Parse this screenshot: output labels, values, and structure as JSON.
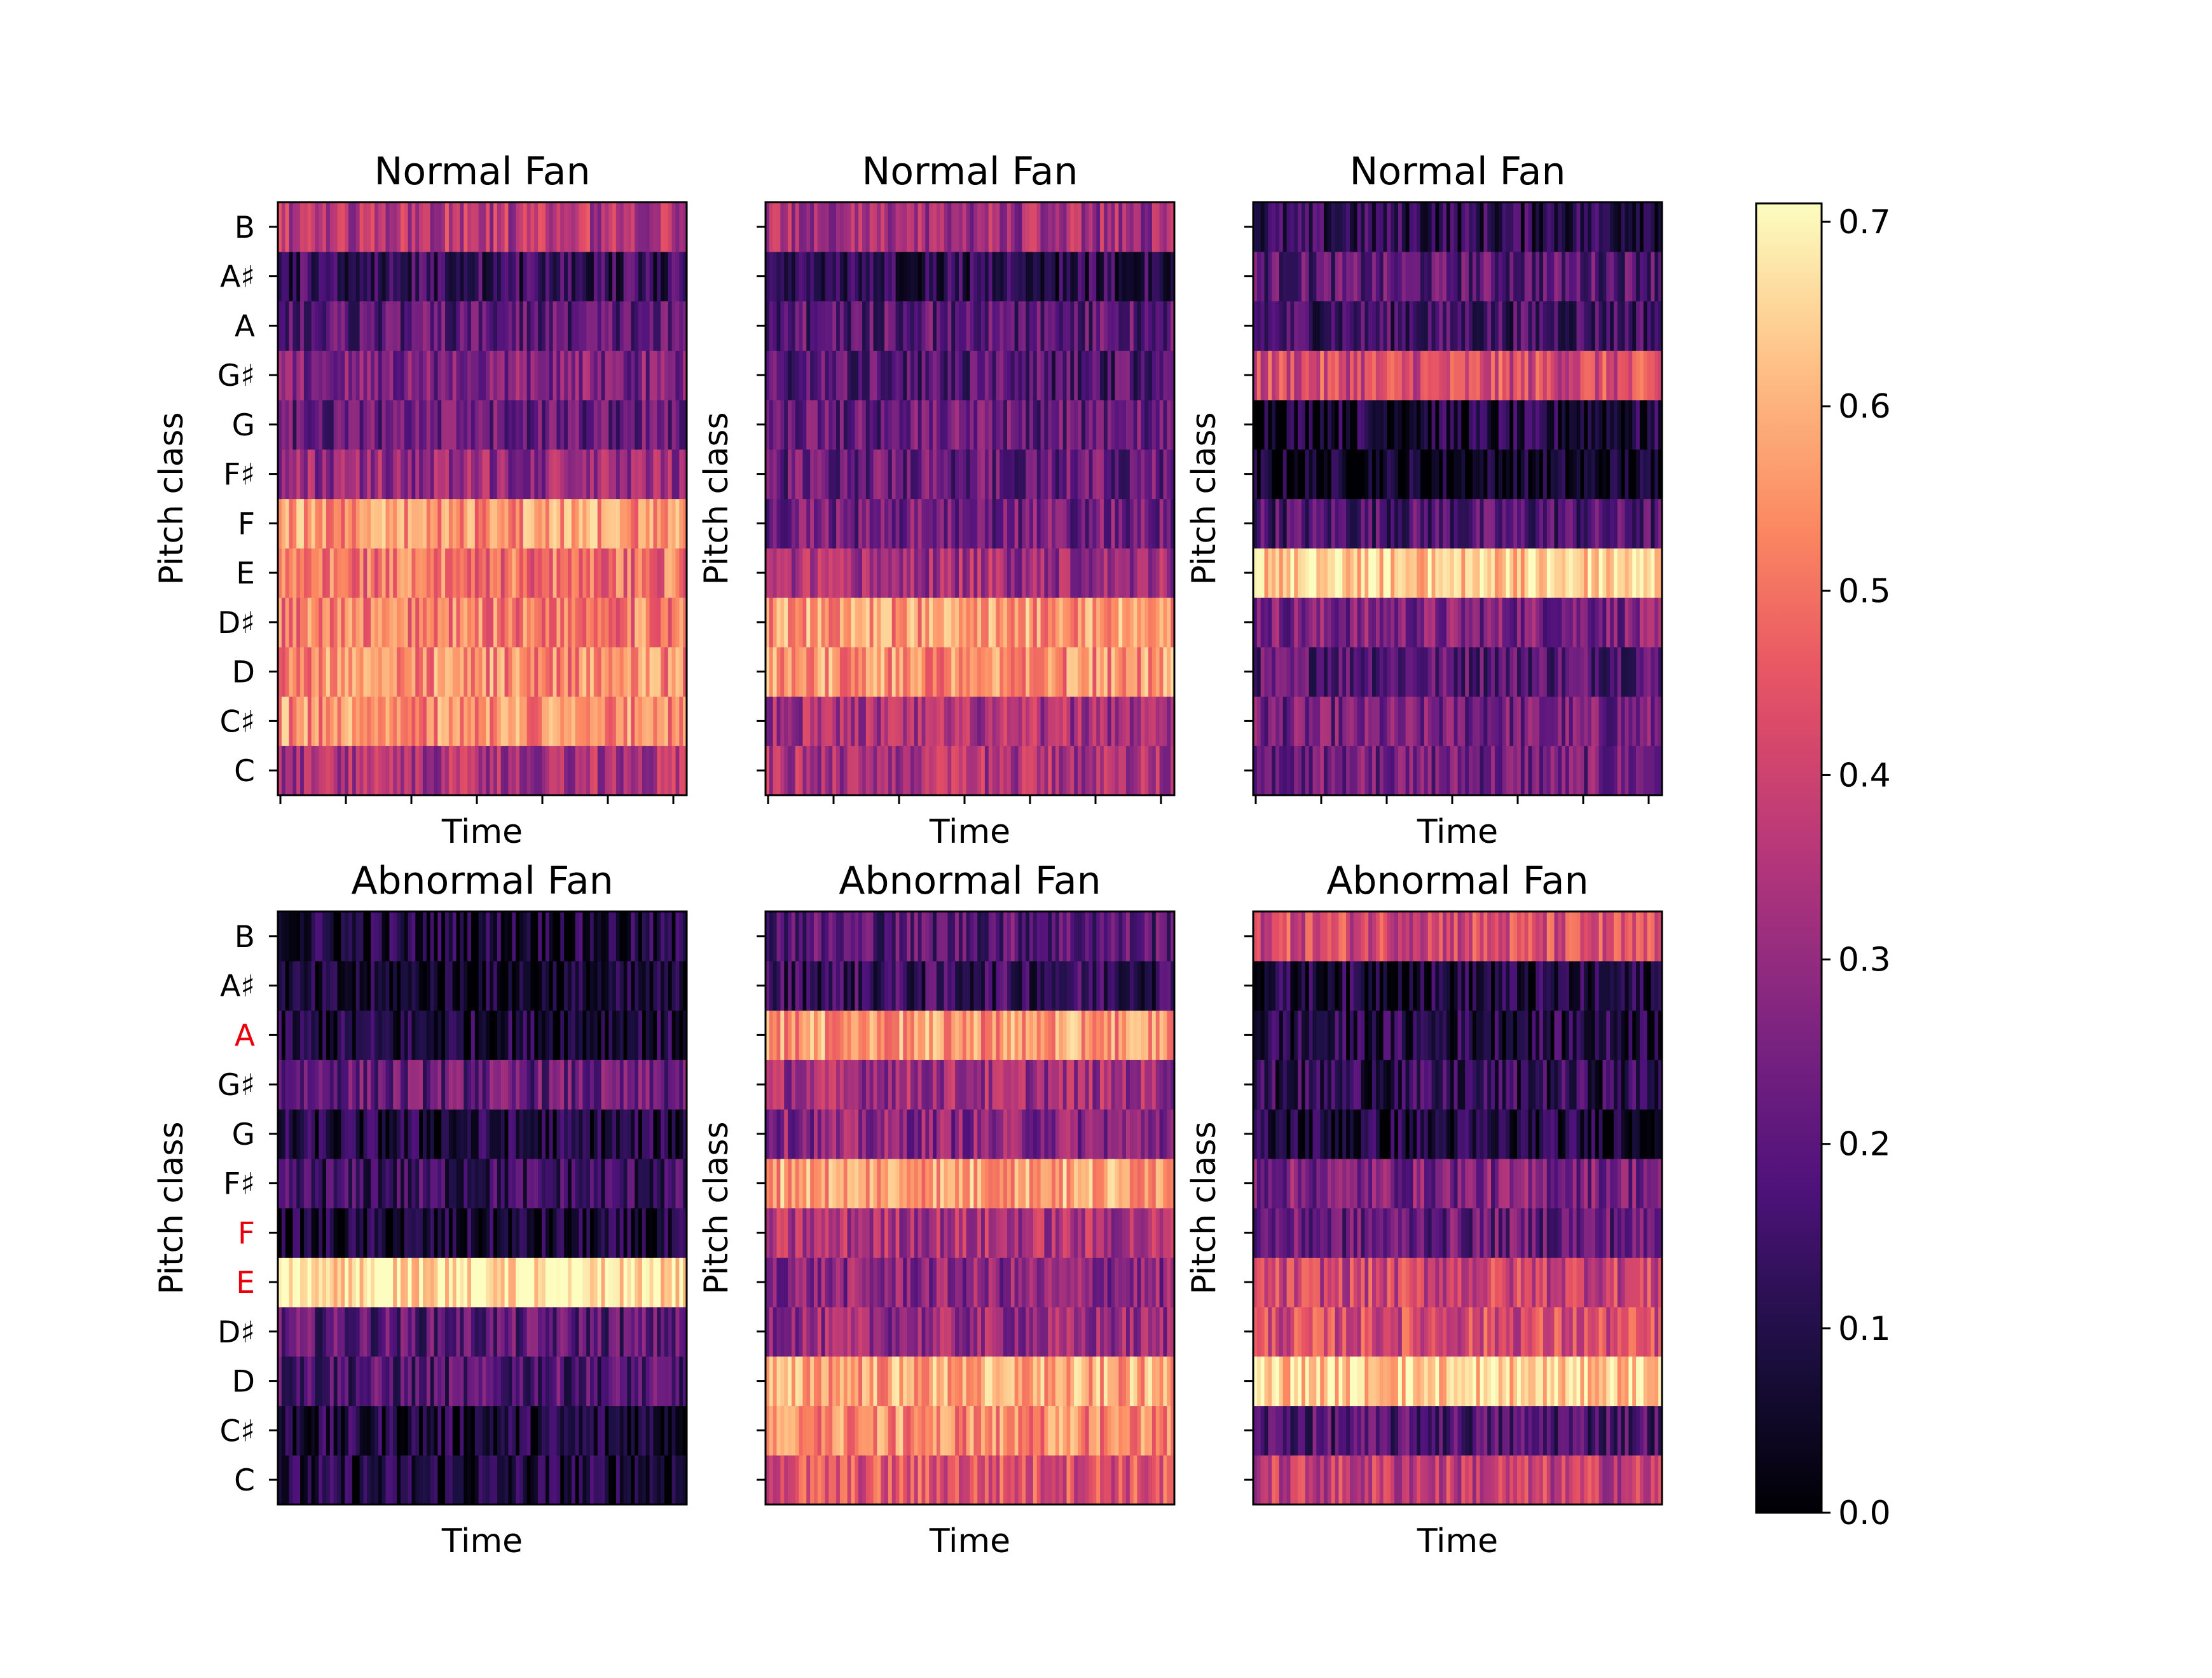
{
  "chart_data": {
    "type": "heatmap",
    "colormap": "magma",
    "grid": false,
    "pitch_classes": [
      "C",
      "C♯",
      "D",
      "D♯",
      "E",
      "F",
      "F♯",
      "G",
      "G♯",
      "A",
      "A♯",
      "B"
    ],
    "colorbar": {
      "range": [
        0.0,
        0.71
      ],
      "ticks": [
        "0.0",
        "0.1",
        "0.2",
        "0.3",
        "0.4",
        "0.5",
        "0.6",
        "0.7"
      ]
    },
    "panels": [
      {
        "title": "Normal Fan",
        "xlabel": "Time",
        "ylabel": "Pitch class",
        "show_tick_labels": true,
        "highlight_labels": [],
        "row_means": [
          0.34,
          0.55,
          0.54,
          0.52,
          0.5,
          0.56,
          0.3,
          0.22,
          0.26,
          0.2,
          0.14,
          0.36
        ]
      },
      {
        "title": "Normal Fan",
        "xlabel": "Time",
        "ylabel": "Pitch class",
        "show_tick_labels": false,
        "highlight_labels": [],
        "row_means": [
          0.34,
          0.33,
          0.55,
          0.56,
          0.32,
          0.24,
          0.22,
          0.22,
          0.18,
          0.2,
          0.12,
          0.32
        ]
      },
      {
        "title": "Normal Fan",
        "xlabel": "Time",
        "ylabel": "Pitch class",
        "show_tick_labels": false,
        "highlight_labels": [],
        "row_means": [
          0.24,
          0.24,
          0.2,
          0.26,
          0.64,
          0.18,
          0.04,
          0.08,
          0.42,
          0.16,
          0.2,
          0.12
        ]
      },
      {
        "title": "Abnormal Fan",
        "xlabel": "Time",
        "ylabel": "Pitch class",
        "show_tick_labels": true,
        "highlight_labels": [
          "A",
          "F",
          "E"
        ],
        "row_means": [
          0.08,
          0.08,
          0.18,
          0.2,
          0.68,
          0.06,
          0.14,
          0.08,
          0.22,
          0.08,
          0.05,
          0.08
        ]
      },
      {
        "title": "Abnormal Fan",
        "xlabel": "Time",
        "ylabel": "Pitch class",
        "show_tick_labels": false,
        "highlight_labels": [],
        "row_means": [
          0.44,
          0.54,
          0.58,
          0.3,
          0.28,
          0.34,
          0.58,
          0.28,
          0.32,
          0.56,
          0.14,
          0.2
        ]
      },
      {
        "title": "Abnormal Fan",
        "xlabel": "Time",
        "ylabel": "Pitch class",
        "show_tick_labels": false,
        "highlight_labels": [],
        "row_means": [
          0.38,
          0.18,
          0.64,
          0.42,
          0.4,
          0.22,
          0.26,
          0.08,
          0.12,
          0.1,
          0.08,
          0.42
        ]
      }
    ]
  }
}
